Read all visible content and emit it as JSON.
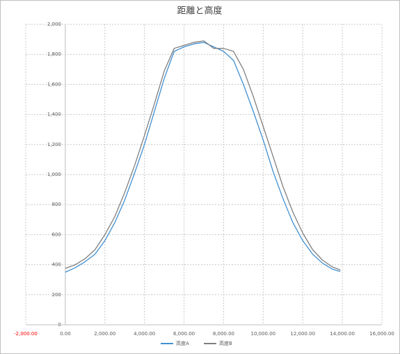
{
  "chart_data": {
    "type": "line",
    "title": "距離と高度",
    "x": [
      0,
      500,
      1000,
      1500,
      2000,
      2500,
      3000,
      3500,
      4000,
      4500,
      5000,
      5500,
      6000,
      6500,
      7000,
      7500,
      8000,
      8500,
      9000,
      9500,
      10000,
      10500,
      11000,
      11500,
      12000,
      12500,
      13000,
      13500,
      13900
    ],
    "series": [
      {
        "name": "高度A",
        "color": "#3f8fd2",
        "values": [
          350,
          380,
          420,
          470,
          560,
          680,
          830,
          1010,
          1200,
          1420,
          1640,
          1820,
          1850,
          1870,
          1880,
          1850,
          1820,
          1760,
          1600,
          1420,
          1230,
          1020,
          840,
          680,
          560,
          470,
          410,
          370,
          355
        ]
      },
      {
        "name": "高度B",
        "color": "#7f7f7f",
        "values": [
          375,
          400,
          440,
          500,
          600,
          720,
          880,
          1060,
          1260,
          1470,
          1690,
          1840,
          1860,
          1880,
          1890,
          1840,
          1840,
          1820,
          1700,
          1520,
          1320,
          1120,
          920,
          750,
          610,
          500,
          430,
          385,
          365
        ]
      }
    ],
    "xlim": [
      -2000,
      16000
    ],
    "xticks": [
      {
        "value": -2000,
        "label": "-2,000.00"
      },
      {
        "value": 0,
        "label": "0.00"
      },
      {
        "value": 2000,
        "label": "2,000.00"
      },
      {
        "value": 4000,
        "label": "4,000.00"
      },
      {
        "value": 6000,
        "label": "6,000.00"
      },
      {
        "value": 8000,
        "label": "8,000.00"
      },
      {
        "value": 10000,
        "label": "10,000.00"
      },
      {
        "value": 12000,
        "label": "12,000.00"
      },
      {
        "value": 14000,
        "label": "14,000.00"
      },
      {
        "value": 16000,
        "label": "16,000.00"
      }
    ],
    "ylim": [
      0,
      2000
    ],
    "yticks": [
      0,
      200,
      400,
      600,
      800,
      {
        "value": 1000,
        "label": "1,000"
      },
      {
        "value": 1200,
        "label": "1,200"
      },
      {
        "value": 1400,
        "label": "1,400"
      },
      {
        "value": 1600,
        "label": "1,600"
      },
      {
        "value": 1800,
        "label": "1,800"
      },
      {
        "value": 2000,
        "label": "2,000"
      }
    ],
    "grid": true,
    "negative_label_color": "#ff0000",
    "legend": "bottom"
  }
}
